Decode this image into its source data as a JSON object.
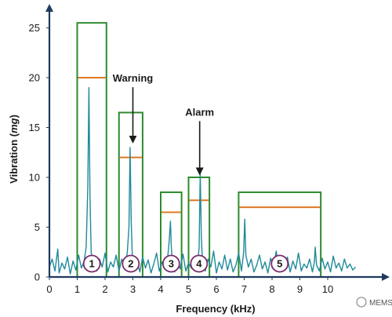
{
  "chart_data": {
    "type": "line",
    "xlabel": "Frequency (kHz)",
    "ylabel_prefix": "Vibration (",
    "ylabel_unit": "mg",
    "ylabel_suffix": ")",
    "xlim": [
      0,
      11
    ],
    "ylim": [
      0,
      27
    ],
    "xticks": [
      0,
      1,
      2,
      3,
      4,
      5,
      6,
      7,
      8,
      9,
      10
    ],
    "yticks": [
      0,
      5,
      10,
      15,
      20,
      25
    ],
    "grid": false,
    "colors": {
      "signal": "#1f8a9a",
      "band_box": "#2e8b2e",
      "threshold": "#e07820",
      "band_marker": "#7a2a6a",
      "axis": "#1f3a5f",
      "arrow": "#1a1a1a"
    },
    "bands": [
      {
        "label": "1",
        "x0": 1.0,
        "x1": 2.05,
        "top": 25.5,
        "threshold": 20.0
      },
      {
        "label": "2",
        "x0": 2.5,
        "x1": 3.35,
        "top": 16.5,
        "threshold": 12.0
      },
      {
        "label": "3",
        "x0": 4.0,
        "x1": 4.75,
        "top": 8.5,
        "threshold": 6.5
      },
      {
        "label": "4",
        "x0": 5.0,
        "x1": 5.75,
        "top": 10.0,
        "threshold": 7.7
      },
      {
        "label": "5",
        "x0": 6.8,
        "x1": 9.75,
        "top": 8.5,
        "threshold": 7.0
      }
    ],
    "signal": {
      "x": [
        0.0,
        0.1,
        0.2,
        0.3,
        0.35,
        0.45,
        0.55,
        0.65,
        0.75,
        0.85,
        0.95,
        1.05,
        1.15,
        1.25,
        1.32,
        1.38,
        1.42,
        1.46,
        1.5,
        1.55,
        1.62,
        1.7,
        1.8,
        1.9,
        2.0,
        2.1,
        2.2,
        2.3,
        2.4,
        2.5,
        2.6,
        2.7,
        2.8,
        2.86,
        2.9,
        2.94,
        2.98,
        3.05,
        3.15,
        3.25,
        3.35,
        3.45,
        3.55,
        3.65,
        3.75,
        3.85,
        3.95,
        4.05,
        4.15,
        4.25,
        4.3,
        4.35,
        4.38,
        4.42,
        4.5,
        4.6,
        4.7,
        4.8,
        4.9,
        5.0,
        5.1,
        5.2,
        5.3,
        5.38,
        5.42,
        5.46,
        5.5,
        5.6,
        5.7,
        5.8,
        5.9,
        6.0,
        6.1,
        6.2,
        6.3,
        6.4,
        6.5,
        6.6,
        6.7,
        6.8,
        6.9,
        6.98,
        7.02,
        7.06,
        7.15,
        7.25,
        7.35,
        7.45,
        7.55,
        7.65,
        7.75,
        7.85,
        7.95,
        8.05,
        8.15,
        8.25,
        8.35,
        8.45,
        8.55,
        8.65,
        8.75,
        8.85,
        8.95,
        9.05,
        9.15,
        9.25,
        9.35,
        9.45,
        9.52,
        9.55,
        9.6,
        9.7,
        9.8,
        9.9,
        10.0,
        10.1,
        10.2,
        10.3,
        10.4,
        10.5,
        10.6,
        10.7,
        10.8,
        10.9,
        11.0
      ],
      "y": [
        1.0,
        1.8,
        0.6,
        2.8,
        0.4,
        1.4,
        0.8,
        2.0,
        0.3,
        1.6,
        0.7,
        2.2,
        0.9,
        1.6,
        3.0,
        9.0,
        19.0,
        8.0,
        2.5,
        1.2,
        2.0,
        0.6,
        1.8,
        1.0,
        2.4,
        0.5,
        1.5,
        1.0,
        2.2,
        0.6,
        1.8,
        0.8,
        2.5,
        5.0,
        13.0,
        5.5,
        2.0,
        0.6,
        1.6,
        0.5,
        2.0,
        0.9,
        1.7,
        0.4,
        1.3,
        2.4,
        0.6,
        1.5,
        1.0,
        2.0,
        3.5,
        5.6,
        3.0,
        1.5,
        0.5,
        1.8,
        0.8,
        2.3,
        0.6,
        1.4,
        0.9,
        2.0,
        0.7,
        3.0,
        10.5,
        4.0,
        1.6,
        0.6,
        1.8,
        1.0,
        2.6,
        0.4,
        1.5,
        0.8,
        2.2,
        0.7,
        1.8,
        0.5,
        1.2,
        2.4,
        0.6,
        2.5,
        5.8,
        2.2,
        1.0,
        1.8,
        0.5,
        1.2,
        2.2,
        0.8,
        1.5,
        0.4,
        1.9,
        1.0,
        2.6,
        0.6,
        1.4,
        0.9,
        2.0,
        0.5,
        1.6,
        0.8,
        2.4,
        0.6,
        1.3,
        0.9,
        1.8,
        0.5,
        1.5,
        3.0,
        1.2,
        0.6,
        1.9,
        0.8,
        1.5,
        0.5,
        2.1,
        0.9,
        1.4,
        0.6,
        1.8,
        0.9,
        1.3,
        0.7,
        1.0
      ]
    },
    "annotations": [
      {
        "text": "Warning",
        "x": 3.0,
        "arrow_from": 19.2,
        "arrow_to": 13.4
      },
      {
        "text": "Alarm",
        "x": 5.4,
        "arrow_from": 15.8,
        "arrow_to": 10.2
      }
    ]
  },
  "watermark": "MEMS"
}
